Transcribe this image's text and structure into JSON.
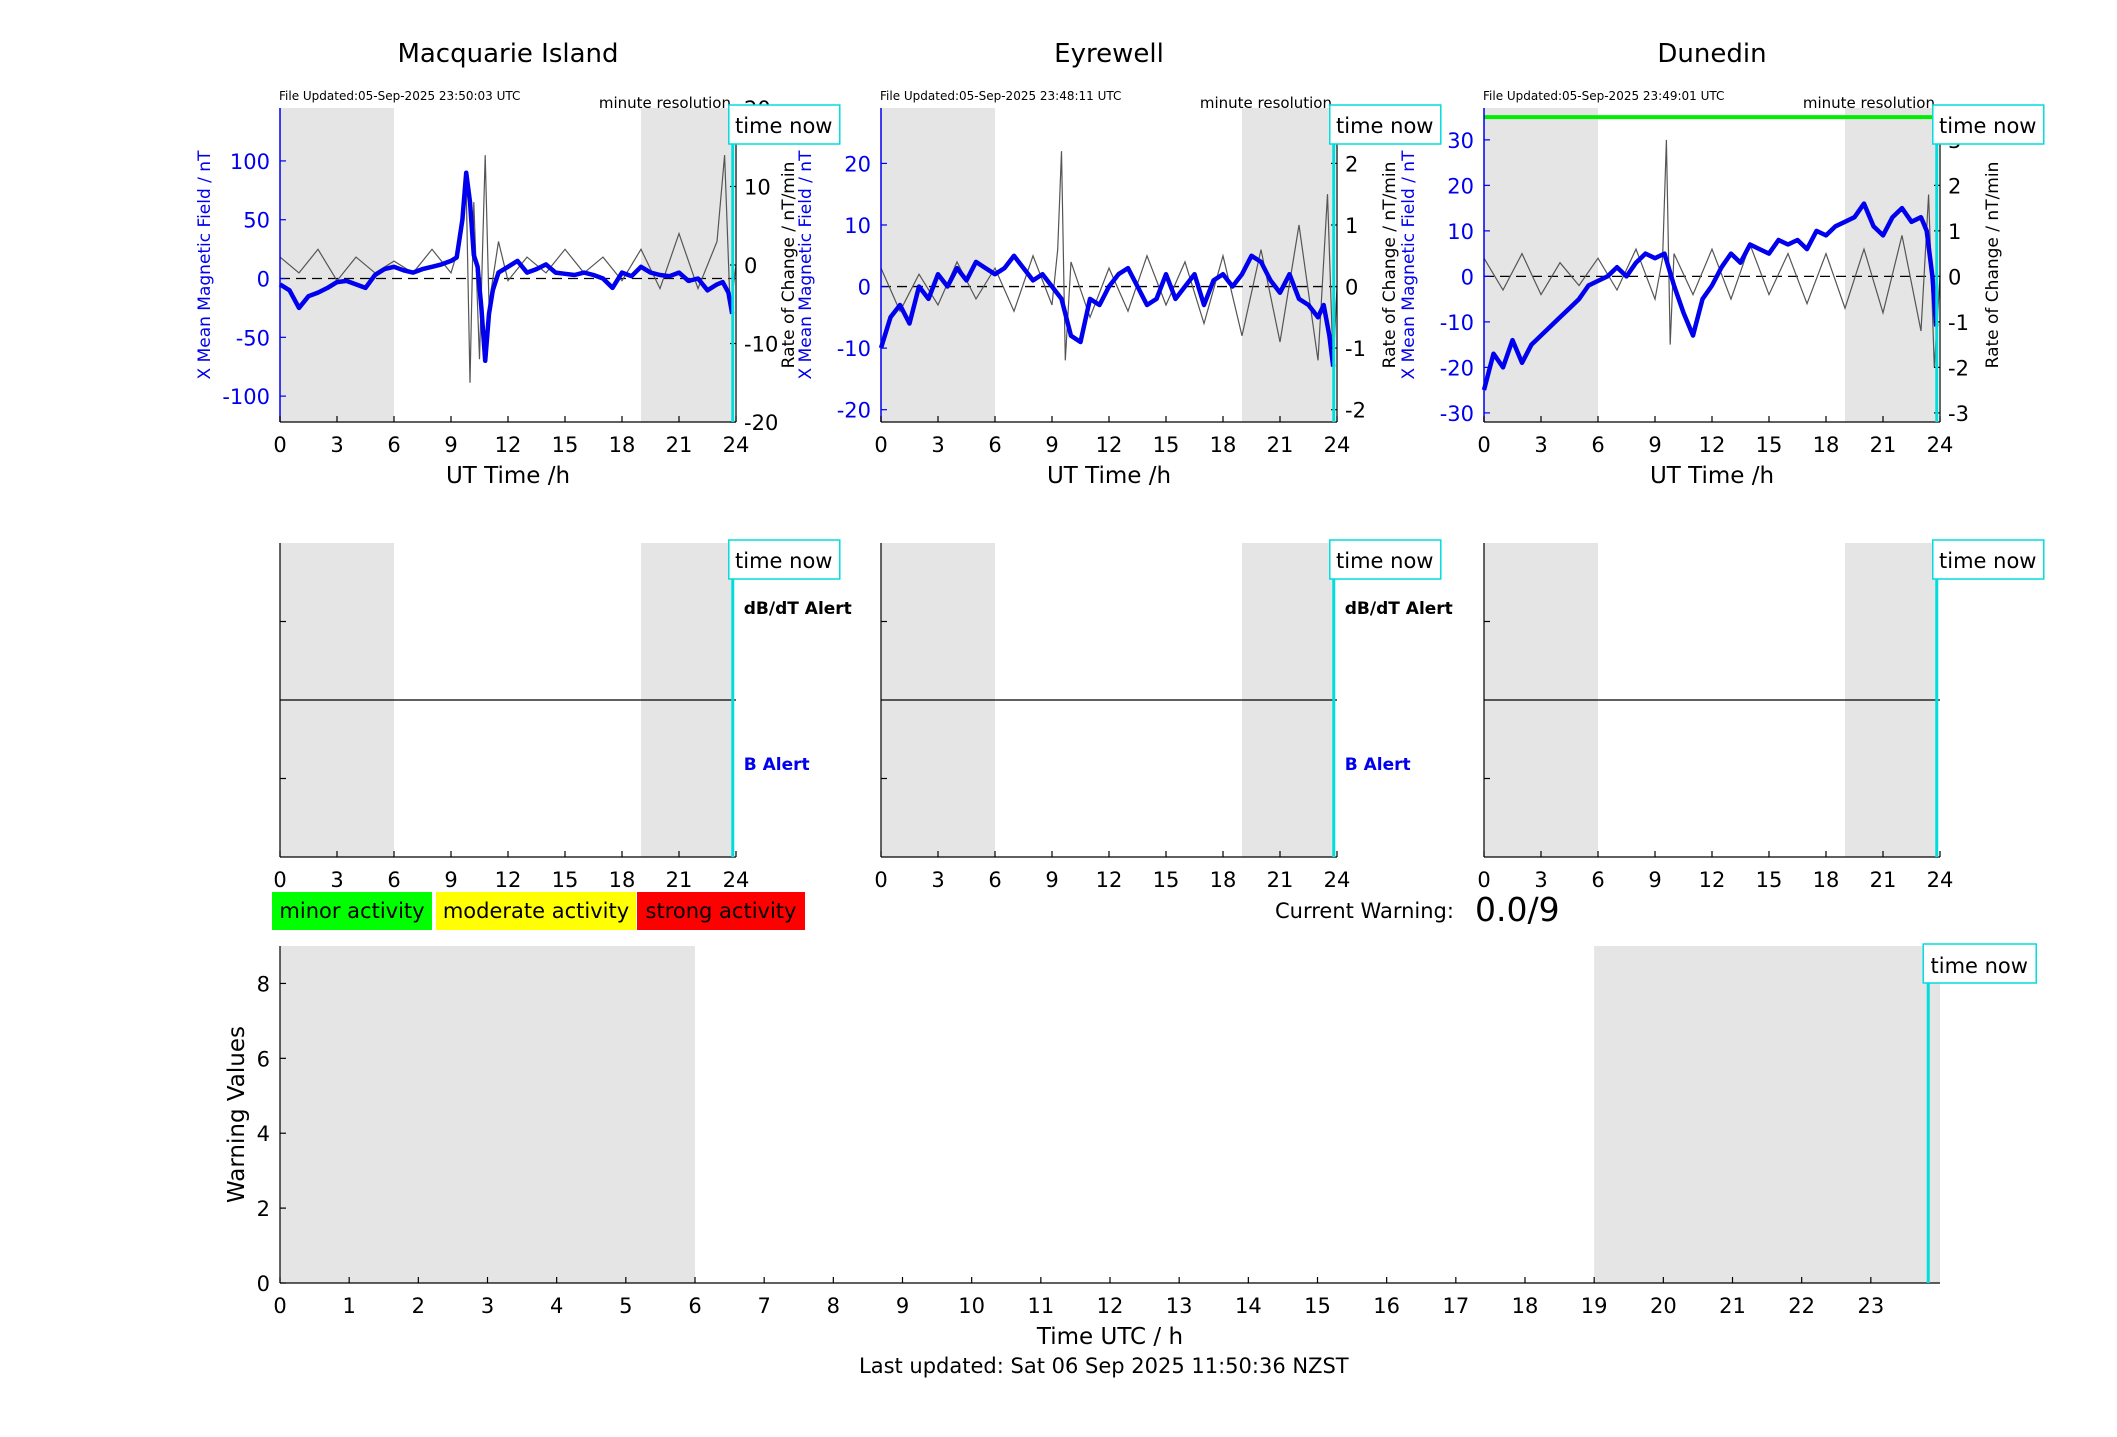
{
  "stations": [
    {
      "name": "Macquarie Island",
      "file_updated": "File Updated:05-Sep-2025 23:50:03 UTC",
      "resolution": "minute resolution",
      "xlabel": "UT Time /h",
      "ylabel_left": "X Mean Magnetic Field / nT",
      "ylabel_right": "Rate of Change / nT/min",
      "left_ticks": [
        -100,
        -50,
        0,
        50,
        100
      ],
      "left_ylim": [
        -122,
        145
      ],
      "right_ticks": [
        -20,
        -10,
        0,
        10,
        20
      ],
      "right_ylim": [
        -20,
        20
      ],
      "x_ticks": [
        0,
        3,
        6,
        9,
        12,
        15,
        18,
        21,
        24
      ],
      "series_x_mean": {
        "x": [
          0,
          0.5,
          1,
          1.5,
          2,
          2.5,
          3,
          3.5,
          4,
          4.5,
          5,
          5.5,
          6,
          6.5,
          7,
          7.5,
          8,
          8.5,
          9,
          9.3,
          9.6,
          9.8,
          10,
          10.2,
          10.4,
          10.6,
          10.8,
          11,
          11.2,
          11.5,
          12,
          12.5,
          13,
          13.5,
          14,
          14.5,
          15,
          15.5,
          16,
          16.5,
          17,
          17.5,
          18,
          18.5,
          19,
          19.5,
          20,
          20.5,
          21,
          21.5,
          22,
          22.5,
          23,
          23.3,
          23.6,
          23.8
        ],
        "y": [
          -5,
          -10,
          -25,
          -15,
          -12,
          -8,
          -3,
          -2,
          -5,
          -8,
          3,
          8,
          10,
          7,
          5,
          8,
          10,
          12,
          15,
          18,
          50,
          90,
          65,
          20,
          10,
          -25,
          -70,
          -30,
          -10,
          5,
          10,
          15,
          5,
          8,
          12,
          5,
          4,
          3,
          5,
          3,
          0,
          -8,
          5,
          2,
          10,
          5,
          3,
          2,
          5,
          -2,
          0,
          -10,
          -5,
          -3,
          -12,
          -30
        ]
      },
      "series_rate": {
        "x": [
          0,
          1,
          2,
          3,
          4,
          5,
          6,
          7,
          8,
          9,
          9.5,
          9.8,
          10,
          10.2,
          10.5,
          10.8,
          11,
          11.5,
          12,
          13,
          14,
          15,
          16,
          17,
          18,
          19,
          20,
          21,
          22,
          23,
          23.4,
          23.7,
          24
        ],
        "y": [
          1,
          -1,
          2,
          -2,
          1,
          -1,
          0.5,
          -1,
          2,
          -1,
          3,
          10,
          -15,
          8,
          -12,
          14,
          -5,
          3,
          -2,
          1,
          -1,
          2,
          -1,
          1,
          -2,
          2,
          -3,
          4,
          -3,
          3,
          14,
          -6,
          0
        ]
      },
      "alert_labels": [
        "dB/dT Alert",
        "B Alert"
      ]
    },
    {
      "name": "Eyrewell",
      "file_updated": "File Updated:05-Sep-2025 23:48:11 UTC",
      "resolution": "minute resolution",
      "xlabel": "UT Time /h",
      "ylabel_left": "X Mean Magnetic Field / nT",
      "ylabel_right": "Rate of Change / nT/min",
      "left_ticks": [
        -20,
        -10,
        0,
        10,
        20
      ],
      "left_ylim": [
        -22,
        29
      ],
      "right_ticks": [
        -2,
        -1,
        0,
        1,
        2
      ],
      "right_ylim": [
        -2.2,
        2.9
      ],
      "x_ticks": [
        0,
        3,
        6,
        9,
        12,
        15,
        18,
        21,
        24
      ],
      "series_x_mean": {
        "x": [
          0,
          0.5,
          1,
          1.5,
          2,
          2.5,
          3,
          3.5,
          4,
          4.5,
          5,
          5.5,
          6,
          6.5,
          7,
          7.5,
          8,
          8.5,
          9,
          9.5,
          10,
          10.5,
          11,
          11.5,
          12,
          12.5,
          13,
          13.5,
          14,
          14.5,
          15,
          15.5,
          16,
          16.5,
          17,
          17.5,
          18,
          18.5,
          19,
          19.5,
          20,
          20.5,
          21,
          21.5,
          22,
          22.5,
          23,
          23.3,
          23.6,
          23.8
        ],
        "y": [
          -10,
          -5,
          -3,
          -6,
          0,
          -2,
          2,
          0,
          3,
          1,
          4,
          3,
          2,
          3,
          5,
          3,
          1,
          2,
          0,
          -2,
          -8,
          -9,
          -2,
          -3,
          0,
          2,
          3,
          0,
          -3,
          -2,
          2,
          -2,
          0,
          2,
          -3,
          1,
          2,
          0,
          2,
          5,
          4,
          1,
          -1,
          2,
          -2,
          -3,
          -5,
          -3,
          -8,
          -13
        ]
      },
      "series_rate": {
        "x": [
          0,
          1,
          2,
          3,
          4,
          5,
          6,
          7,
          8,
          9,
          9.3,
          9.5,
          9.7,
          10,
          11,
          12,
          13,
          14,
          15,
          16,
          17,
          18,
          19,
          20,
          21,
          22,
          23,
          23.5,
          23.8,
          24
        ],
        "y": [
          0.3,
          -0.4,
          0.2,
          -0.3,
          0.4,
          -0.2,
          0.3,
          -0.4,
          0.5,
          -0.3,
          0.6,
          2.2,
          -1.2,
          0.4,
          -0.5,
          0.3,
          -0.4,
          0.5,
          -0.3,
          0.4,
          -0.6,
          0.5,
          -0.8,
          0.6,
          -0.9,
          1.0,
          -1.2,
          1.5,
          -1.3,
          0
        ]
      },
      "alert_labels": [
        "dB/dT Alert",
        "B Alert"
      ]
    },
    {
      "name": "Dunedin",
      "file_updated": "File Updated:05-Sep-2025 23:49:01 UTC",
      "resolution": "minute resolution",
      "xlabel": "UT Time /h",
      "ylabel_left": "X Mean Magnetic Field / nT",
      "ylabel_right": "Rate of Change / nT/min",
      "left_ticks": [
        -30,
        -20,
        -10,
        0,
        10,
        20,
        30
      ],
      "left_ylim": [
        -32,
        37
      ],
      "right_ticks": [
        -3,
        -2,
        -1,
        0,
        1,
        2,
        3
      ],
      "right_ylim": [
        -3.2,
        3.7
      ],
      "x_ticks": [
        0,
        3,
        6,
        9,
        12,
        15,
        18,
        21,
        24
      ],
      "threshold_line": 35,
      "series_x_mean": {
        "x": [
          0,
          0.5,
          1,
          1.5,
          2,
          2.5,
          3,
          3.5,
          4,
          4.5,
          5,
          5.5,
          6,
          6.5,
          7,
          7.5,
          8,
          8.5,
          9,
          9.5,
          10,
          10.5,
          11,
          11.5,
          12,
          12.5,
          13,
          13.5,
          14,
          14.5,
          15,
          15.5,
          16,
          16.5,
          17,
          17.5,
          18,
          18.5,
          19,
          19.5,
          20,
          20.5,
          21,
          21.5,
          22,
          22.5,
          23,
          23.3,
          23.6,
          23.8
        ],
        "y": [
          -25,
          -17,
          -20,
          -14,
          -19,
          -15,
          -13,
          -11,
          -9,
          -7,
          -5,
          -2,
          -1,
          0,
          2,
          0,
          3,
          5,
          4,
          5,
          -2,
          -8,
          -13,
          -5,
          -2,
          2,
          5,
          3,
          7,
          6,
          5,
          8,
          7,
          8,
          6,
          10,
          9,
          11,
          12,
          13,
          16,
          11,
          9,
          13,
          15,
          12,
          13,
          10,
          0,
          -11
        ]
      },
      "series_rate": {
        "x": [
          0,
          1,
          2,
          3,
          4,
          5,
          6,
          7,
          8,
          9,
          9.4,
          9.6,
          9.8,
          10,
          11,
          12,
          13,
          14,
          15,
          16,
          17,
          18,
          19,
          20,
          21,
          22,
          23,
          23.4,
          23.7,
          24
        ],
        "y": [
          0.4,
          -0.3,
          0.5,
          -0.4,
          0.3,
          -0.2,
          0.4,
          -0.3,
          0.6,
          -0.5,
          0.4,
          3.0,
          -1.5,
          0.5,
          -0.4,
          0.6,
          -0.5,
          0.7,
          -0.4,
          0.5,
          -0.6,
          0.5,
          -0.7,
          0.6,
          -0.8,
          0.9,
          -1.2,
          1.8,
          -2.0,
          0
        ]
      },
      "alert_labels": []
    }
  ],
  "time_now_label": "time now",
  "time_now_hours": 23.83,
  "night_shading_hours": [
    [
      0,
      6
    ],
    [
      19,
      24
    ]
  ],
  "legend": {
    "minor": "minor activity",
    "moderate": "moderate activity",
    "strong": "strong activity",
    "minor_color": "#00ff00",
    "moderate_color": "#ffff00",
    "strong_color": "#ff0000"
  },
  "current_warning": {
    "label": "Current Warning:",
    "value": "0.0/9"
  },
  "chart_data": {
    "type": "line",
    "title": "",
    "xlabel": "Time UTC / h",
    "ylabel": "Warning Values",
    "xlim": [
      0,
      24
    ],
    "ylim": [
      0,
      9
    ],
    "x_ticks": [
      0,
      1,
      2,
      3,
      4,
      5,
      6,
      7,
      8,
      9,
      10,
      11,
      12,
      13,
      14,
      15,
      16,
      17,
      18,
      19,
      20,
      21,
      22,
      23
    ],
    "y_ticks": [
      0,
      2,
      4,
      6,
      8
    ],
    "series": []
  },
  "footer": {
    "last_updated": "Last updated: Sat 06 Sep 2025 11:50:36 NZST"
  },
  "colors": {
    "field_line": "#0000ee",
    "rate_line": "#555555",
    "shading": "#e5e5e5",
    "time_now": "#00dddd",
    "threshold": "#00ee00",
    "alert_label": "#0000ee"
  }
}
